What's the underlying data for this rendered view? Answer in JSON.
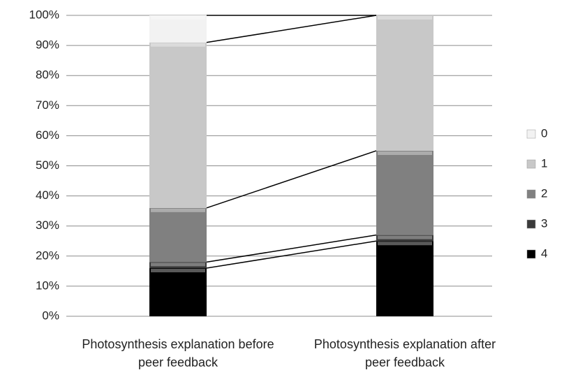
{
  "chart_data": {
    "type": "stacked_bar_100",
    "categories": [
      "Photosynthesis explanation before peer feedback",
      "Photosynthesis explanation after peer feedback"
    ],
    "series": [
      {
        "name": "4",
        "color": "#000000",
        "values": [
          16,
          25
        ]
      },
      {
        "name": "3",
        "color": "#3a3a3a",
        "values": [
          2,
          2
        ]
      },
      {
        "name": "2",
        "color": "#808080",
        "values": [
          18,
          28
        ]
      },
      {
        "name": "1",
        "color": "#c8c8c8",
        "values": [
          55,
          45
        ]
      },
      {
        "name": "0",
        "color": "#f2f2f2",
        "values": [
          9,
          0
        ]
      }
    ],
    "ylim": [
      0,
      100
    ],
    "yticks": [
      {
        "value": 0,
        "label": "0%"
      },
      {
        "value": 10,
        "label": "10%"
      },
      {
        "value": 20,
        "label": "20%"
      },
      {
        "value": 30,
        "label": "30%"
      },
      {
        "value": 40,
        "label": "40%"
      },
      {
        "value": 50,
        "label": "50%"
      },
      {
        "value": 60,
        "label": "60%"
      },
      {
        "value": 70,
        "label": "70%"
      },
      {
        "value": 80,
        "label": "80%"
      },
      {
        "value": 90,
        "label": "90%"
      },
      {
        "value": 100,
        "label": "100%"
      }
    ],
    "grid": true,
    "legend": "right"
  }
}
